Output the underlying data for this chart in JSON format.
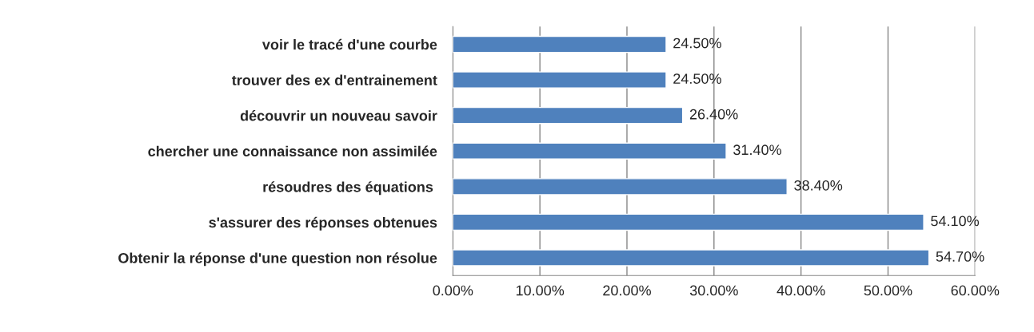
{
  "chart_data": {
    "type": "bar",
    "orientation": "horizontal",
    "categories": [
      "voir le tracé d'une courbe",
      "trouver des ex d'entrainement",
      "découvrir un nouveau savoir",
      "chercher une connaissance non assimilée",
      "résoudres des équations ",
      "s'assurer des réponses obtenues",
      "Obtenir la réponse d'une question non résolue"
    ],
    "values": [
      24.5,
      24.5,
      26.4,
      31.4,
      38.4,
      54.1,
      54.7
    ],
    "value_labels": [
      "24.50%",
      "24.50%",
      "26.40%",
      "31.40%",
      "38.40%",
      "54.10%",
      "54.70%"
    ],
    "color": "#4f81bd",
    "xlim": [
      0,
      60
    ],
    "xticks": [
      {
        "value": 0,
        "label": "0.00%"
      },
      {
        "value": 10,
        "label": "10.00%"
      },
      {
        "value": 20,
        "label": "20.00%"
      },
      {
        "value": 30,
        "label": "30.00%"
      },
      {
        "value": 40,
        "label": "40.00%"
      },
      {
        "value": 50,
        "label": "50.00%"
      },
      {
        "value": 60,
        "label": "60.00%"
      }
    ],
    "grid": "x"
  }
}
